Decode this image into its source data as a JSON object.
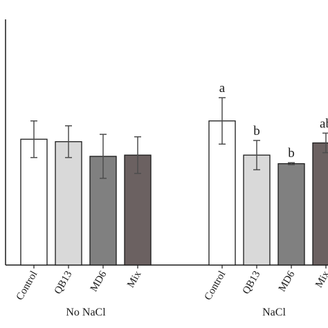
{
  "chart_data": {
    "type": "bar",
    "groups": [
      {
        "label": "No NaCl",
        "bars": [
          {
            "category": "Control",
            "value": 51.5,
            "error": 7.5,
            "color": "#ffffff",
            "sig": ""
          },
          {
            "category": "QB13",
            "value": 50.5,
            "error": 6.5,
            "color": "#d9d9d9",
            "sig": ""
          },
          {
            "category": "MD6",
            "value": 44.5,
            "error": 9.0,
            "color": "#808080",
            "sig": ""
          },
          {
            "category": "Mix",
            "value": 45.0,
            "error": 7.5,
            "color": "#6b6161",
            "sig": ""
          }
        ]
      },
      {
        "label": "NaCl",
        "bars": [
          {
            "category": "Control",
            "value": 59.0,
            "error": 9.5,
            "color": "#ffffff",
            "sig": "a"
          },
          {
            "category": "QB13",
            "value": 45.0,
            "error": 6.0,
            "color": "#d9d9d9",
            "sig": "b"
          },
          {
            "category": "MD6",
            "value": 41.5,
            "error": 0.4,
            "color": "#808080",
            "sig": "b"
          },
          {
            "category": "Mix",
            "value": 50.0,
            "error": 4.0,
            "color": "#6b6161",
            "sig": "ab"
          }
        ]
      }
    ],
    "ylim": [
      0,
      100
    ],
    "grid": false,
    "bar_edge_color": "#1a1a1a",
    "errorbar_color": "#4d4d4d"
  }
}
